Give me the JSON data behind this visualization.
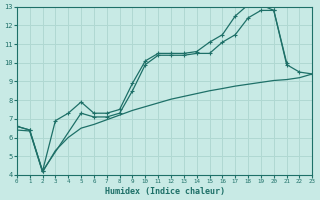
{
  "xlabel": "Humidex (Indice chaleur)",
  "xlim": [
    0,
    23
  ],
  "ylim": [
    4,
    13
  ],
  "yticks": [
    4,
    5,
    6,
    7,
    8,
    9,
    10,
    11,
    12,
    13
  ],
  "xticks": [
    0,
    1,
    2,
    3,
    4,
    5,
    6,
    7,
    8,
    9,
    10,
    11,
    12,
    13,
    14,
    15,
    16,
    17,
    18,
    19,
    20,
    21,
    22,
    23
  ],
  "bg_color": "#c8eae5",
  "grid_color": "#b0d8d2",
  "line_color": "#1e7068",
  "line1_x": [
    0,
    1,
    2,
    3,
    4,
    5,
    6,
    7,
    8,
    9,
    10,
    11,
    12,
    13,
    14,
    15,
    16,
    17,
    18,
    19,
    20,
    21
  ],
  "line1_y": [
    6.6,
    6.4,
    4.2,
    6.9,
    7.3,
    7.9,
    7.3,
    7.3,
    7.5,
    8.9,
    10.1,
    10.5,
    10.5,
    10.5,
    10.6,
    11.1,
    11.5,
    12.5,
    13.1,
    13.1,
    12.8,
    10.0
  ],
  "line2_x": [
    0,
    1,
    2,
    5,
    6,
    7,
    8,
    9,
    10,
    11,
    12,
    13,
    14,
    15,
    16,
    17,
    18,
    19,
    20,
    21,
    22,
    23
  ],
  "line2_y": [
    6.6,
    6.4,
    4.2,
    7.3,
    7.1,
    7.1,
    7.3,
    8.5,
    9.9,
    10.4,
    10.4,
    10.4,
    10.5,
    10.5,
    11.1,
    11.5,
    12.4,
    12.8,
    12.8,
    9.9,
    9.5,
    9.4
  ],
  "line3_x": [
    0,
    1,
    2,
    3,
    4,
    5,
    6,
    7,
    8,
    9,
    10,
    11,
    12,
    13,
    14,
    15,
    16,
    17,
    18,
    19,
    20,
    21,
    22,
    23
  ],
  "line3_y": [
    6.4,
    6.35,
    4.15,
    5.3,
    6.0,
    6.5,
    6.7,
    6.95,
    7.2,
    7.45,
    7.65,
    7.85,
    8.05,
    8.2,
    8.35,
    8.5,
    8.62,
    8.75,
    8.85,
    8.95,
    9.05,
    9.1,
    9.2,
    9.4
  ]
}
